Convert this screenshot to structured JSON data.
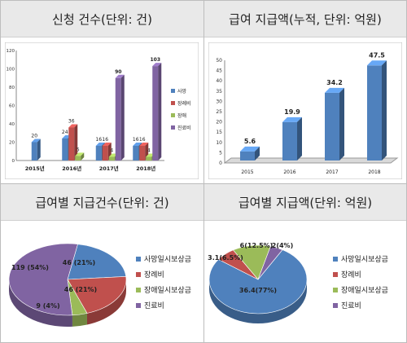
{
  "panels": {
    "top_left_title": "신청 건수(단위: 건)",
    "top_right_title": "급여 지급액(누적, 단위: 억원)",
    "bottom_left_title": "급여별 지급건수(단위: 건)",
    "bottom_right_title": "급여별 지급액(단위: 억원)"
  },
  "colors": {
    "blue": "#4f81bd",
    "red": "#c0504d",
    "green": "#9bbb59",
    "purple": "#8064a2"
  },
  "chart_data": [
    {
      "id": "applications",
      "type": "bar",
      "title": "신청 건수(단위: 건)",
      "categories": [
        "2015년",
        "2016년",
        "2017년",
        "2018년"
      ],
      "ylim": [
        0,
        120
      ],
      "yticks": [
        0,
        20,
        40,
        60,
        80,
        100,
        120
      ],
      "grid": false,
      "legend": "right",
      "series": [
        {
          "name": "사망",
          "color": "#4f81bd",
          "values": [
            20,
            24,
            16,
            16
          ]
        },
        {
          "name": "장례비",
          "color": "#c0504d",
          "values": [
            null,
            36,
            16,
            16
          ]
        },
        {
          "name": "장애",
          "color": "#9bbb59",
          "values": [
            null,
            5,
            4,
            4
          ]
        },
        {
          "name": "진료비",
          "color": "#8064a2",
          "values": [
            null,
            null,
            90,
            103
          ]
        }
      ]
    },
    {
      "id": "cumulative_payment",
      "type": "bar",
      "title": "급여 지급액(누적, 단위: 억원)",
      "categories": [
        "2015",
        "2016",
        "2017",
        "2018"
      ],
      "values": [
        5.6,
        19.9,
        34.2,
        47.5
      ],
      "value_labels": [
        "5.6",
        "19.9",
        "34.2",
        "47.5"
      ],
      "ylim": [
        0,
        50
      ],
      "yticks": [
        0,
        5,
        10,
        15,
        20,
        25,
        30,
        35,
        40,
        45,
        50
      ],
      "grid": false,
      "color": "#4f81bd"
    },
    {
      "id": "payments_count",
      "type": "pie",
      "title": "급여별 지급건수(단위: 건)",
      "labels": [
        "사망일시보상금",
        "장례비",
        "장애일시보상금",
        "진료비"
      ],
      "values": [
        46,
        46,
        9,
        119
      ],
      "data_labels": [
        "46 (21%)",
        "46 (21%)",
        "9 (4%)",
        "119 (54%)"
      ],
      "colors": [
        "#4f81bd",
        "#c0504d",
        "#9bbb59",
        "#8064a2"
      ],
      "legend": "right"
    },
    {
      "id": "payments_amount",
      "type": "pie",
      "title": "급여별 지급액(단위: 억원)",
      "labels": [
        "사망일시보상금",
        "장례비",
        "장애일시보상금",
        "진료비"
      ],
      "values": [
        36.4,
        3.1,
        6,
        2
      ],
      "data_labels": [
        "36.4(77%)",
        "3.1(6.5%)",
        "6(12.5%)",
        "2(4%)"
      ],
      "colors": [
        "#4f81bd",
        "#c0504d",
        "#9bbb59",
        "#8064a2"
      ],
      "legend": "right"
    }
  ]
}
